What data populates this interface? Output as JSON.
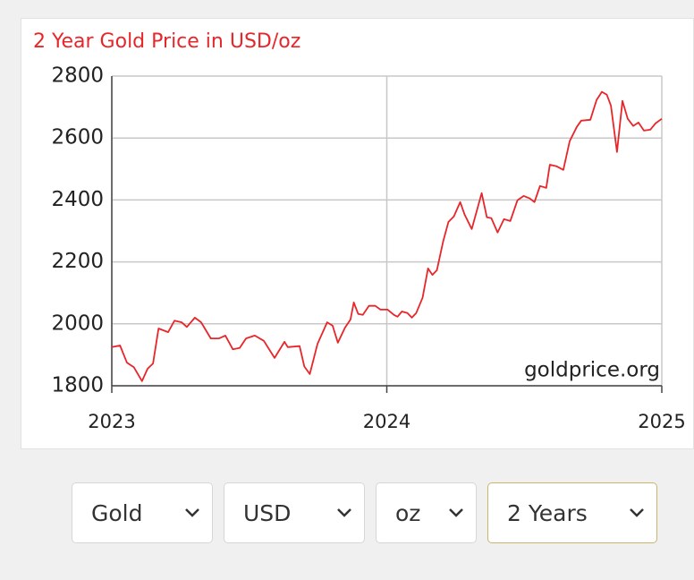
{
  "chart_data": {
    "type": "line",
    "title": "2 Year Gold Price in USD/oz",
    "source": "goldprice.org",
    "color": "#e8262a",
    "x": [
      2023.0,
      2023.03,
      2023.055,
      2023.08,
      2023.11,
      2023.13,
      2023.15,
      2023.17,
      2023.205,
      2023.228,
      2023.254,
      2023.273,
      2023.302,
      2023.325,
      2023.36,
      2023.39,
      2023.413,
      2023.44,
      2023.465,
      2023.488,
      2023.52,
      2023.553,
      2023.592,
      2023.628,
      2023.64,
      2023.683,
      2023.7,
      2023.72,
      2023.748,
      2023.783,
      2023.803,
      2023.822,
      2023.848,
      2023.868,
      2023.88,
      2023.896,
      2023.913,
      2023.935,
      2023.958,
      2023.977,
      2024.003,
      2024.026,
      2024.039,
      2024.055,
      2024.075,
      2024.091,
      2024.107,
      2024.13,
      2024.15,
      2024.166,
      2024.182,
      2024.205,
      2024.224,
      2024.244,
      2024.267,
      2024.283,
      2024.309,
      2024.345,
      2024.364,
      2024.38,
      2024.403,
      2024.426,
      2024.449,
      2024.475,
      2024.498,
      2024.52,
      2024.537,
      2024.557,
      2024.58,
      2024.593,
      2024.617,
      2024.642,
      2024.665,
      2024.691,
      2024.707,
      2024.74,
      2024.763,
      2024.782,
      2024.8,
      2024.815,
      2024.837,
      2024.857,
      2024.876,
      2024.896,
      2024.915,
      2024.935,
      2024.958,
      2024.977,
      2025.0
    ],
    "values": [
      1925,
      1930,
      1875,
      1860,
      1815,
      1855,
      1872,
      1985,
      1973,
      2010,
      2005,
      1990,
      2020,
      2005,
      1953,
      1953,
      1962,
      1918,
      1922,
      1953,
      1962,
      1945,
      1890,
      1942,
      1925,
      1928,
      1862,
      1838,
      1935,
      2005,
      1994,
      1939,
      1988,
      2014,
      2069,
      2032,
      2029,
      2058,
      2058,
      2046,
      2046,
      2029,
      2023,
      2040,
      2035,
      2020,
      2035,
      2084,
      2179,
      2158,
      2173,
      2266,
      2329,
      2347,
      2393,
      2353,
      2306,
      2422,
      2344,
      2341,
      2295,
      2338,
      2332,
      2399,
      2413,
      2405,
      2393,
      2445,
      2439,
      2514,
      2509,
      2497,
      2590,
      2636,
      2656,
      2659,
      2723,
      2749,
      2740,
      2705,
      2555,
      2720,
      2662,
      2639,
      2650,
      2624,
      2627,
      2647,
      2662
    ],
    "xlim": [
      2023,
      2025
    ],
    "xticks": [
      2023,
      2024,
      2025
    ],
    "ylim": [
      1800,
      2800
    ],
    "yticks": [
      1800,
      2000,
      2200,
      2400,
      2600,
      2800
    ],
    "grid": true
  },
  "controls": [
    "Gold",
    "USD",
    "oz",
    "2 Years"
  ]
}
